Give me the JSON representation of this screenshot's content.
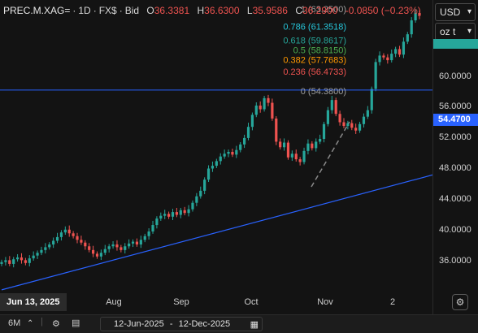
{
  "header": {
    "symbol": "PREC.M.XAG=",
    "interval": "1D",
    "type": "FX$",
    "side": "Bid",
    "o_label": "O",
    "o_value": "36.3381",
    "h_label": "H",
    "h_value": "36.6300",
    "l_label": "L",
    "l_value": "35.9586",
    "c_label": "C",
    "c_value": "36.2900",
    "change": "-0.0850",
    "change_pct": "(−0.23%)"
  },
  "currency_select": {
    "value": "USD"
  },
  "unit_select": {
    "value": "oz t"
  },
  "bottom_bar": {
    "period": "6M",
    "range_start": "12-Jun-2025",
    "range_sep": "-",
    "range_end": "12-Dec-2025"
  },
  "date_badge": "Jun 13, 2025",
  "current_price_label": "54.4700",
  "colors": {
    "up": "#26a69a",
    "down": "#ef5350",
    "background": "#131313",
    "trendline": "#2962ff",
    "price_line": "#2962ff"
  },
  "icons": [
    "chevron-down-icon",
    "chevron-up-icon",
    "gear-icon",
    "data-window-icon",
    "calendar-icon"
  ],
  "fib_levels": [
    {
      "label": "1 (63.2500)",
      "color": "#9e9e9e"
    },
    {
      "label": "0.786 (61.3518)",
      "color": "#26c6da"
    },
    {
      "label": "0.618 (59.8617)",
      "color": "#26a69a"
    },
    {
      "label": "0.5 (58.8150)",
      "color": "#4caf50"
    },
    {
      "label": "0.382 (57.7683)",
      "color": "#ff9800"
    },
    {
      "label": "0.236 (56.4733)",
      "color": "#ef5350"
    },
    {
      "label": "0 (54.3800)",
      "color": "#9e9e9e"
    }
  ],
  "chart_data": {
    "type": "candlestick",
    "x_axis": {
      "ticks": [
        "Aug",
        "Sep",
        "Oct",
        "Nov",
        "2"
      ]
    },
    "y_axis": {
      "ticks": [
        "60.0000",
        "56.0000",
        "52.0000",
        "48.0000",
        "44.0000",
        "40.0000",
        "36.0000"
      ],
      "ylim": [
        32.8,
        64.2
      ]
    },
    "current_price": 54.47,
    "close_series": [
      35.9,
      36.1,
      35.7,
      36.2,
      36.4,
      36.1,
      35.8,
      36.3,
      36.6,
      36.9,
      37.2,
      37.5,
      37.8,
      38.2,
      38.6,
      39.1,
      39.4,
      39.0,
      38.7,
      38.3,
      38.0,
      37.6,
      37.2,
      36.8,
      36.5,
      36.9,
      37.3,
      37.6,
      37.8,
      37.5,
      37.2,
      37.6,
      37.9,
      38.1,
      37.8,
      38.3,
      38.7,
      39.2,
      39.9,
      40.6,
      40.9,
      41.1,
      40.8,
      41.3,
      41.0,
      41.5,
      41.2,
      41.6,
      42.3,
      43.0,
      43.6,
      44.8,
      46.0,
      46.3,
      46.8,
      47.3,
      47.6,
      47.8,
      47.5,
      48.0,
      48.6,
      49.3,
      50.5,
      51.8,
      52.8,
      52.4,
      53.6,
      53.1,
      51.4,
      48.9,
      48.3,
      48.8,
      47.2,
      47.6,
      47.0,
      46.7,
      47.9,
      48.7,
      48.2,
      48.9,
      49.2,
      50.8,
      52.3,
      53.4,
      51.9,
      51.0,
      50.6,
      50.9,
      50.4,
      50.1,
      50.8,
      51.6,
      52.3,
      54.6,
      57.5,
      58.2,
      58.0,
      57.7,
      58.4,
      58.9,
      58.3,
      59.7,
      60.5,
      62.0,
      62.8,
      62.5
    ],
    "trendline": {
      "from": [
        0,
        32.9
      ],
      "to": [
        105,
        44.9
      ]
    },
    "fib_retracement": {
      "high": 63.25,
      "low": 54.38
    }
  }
}
